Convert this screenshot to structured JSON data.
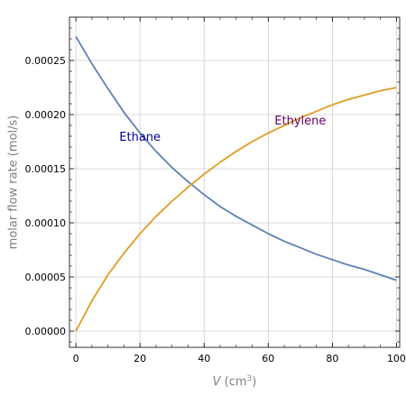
{
  "chart_data": {
    "type": "line",
    "xlabel_var": "V",
    "xlabel_unit_open": " (cm",
    "xlabel_unit_exp": "3",
    "xlabel_unit_close": ")",
    "ylabel": "molar flow rate (mol/s)",
    "xlim": [
      -2,
      101
    ],
    "ylim": [
      -1.5e-05,
      0.00029
    ],
    "x_ticks": [
      0,
      20,
      40,
      60,
      80,
      100
    ],
    "x_tick_labels": [
      "0",
      "20",
      "40",
      "60",
      "80",
      "100"
    ],
    "y_ticks": [
      0,
      5e-05,
      0.0001,
      0.00015,
      0.0002,
      0.00025
    ],
    "y_tick_labels": [
      "0.00000",
      "0.00005",
      "0.00010",
      "0.00015",
      "0.00020",
      "0.00025"
    ],
    "grid": true,
    "series": [
      {
        "name": "Ethane",
        "color": "#5e81b5",
        "label_color": "#000099",
        "x": [
          0,
          5,
          10,
          15,
          20,
          25,
          30,
          35,
          40,
          45,
          50,
          55,
          60,
          65,
          70,
          75,
          80,
          85,
          90,
          95,
          100
        ],
        "values": [
          0.000272,
          0.000247,
          0.000224,
          0.000202,
          0.000183,
          0.000166,
          0.000151,
          0.000138,
          0.000126,
          0.000115,
          0.000106,
          9.8e-05,
          9e-05,
          8.3e-05,
          7.7e-05,
          7.1e-05,
          6.6e-05,
          6.1e-05,
          5.7e-05,
          5.2e-05,
          4.7e-05
        ]
      },
      {
        "name": "Ethylene",
        "color": "#e19c24",
        "label_color": "#660066",
        "x": [
          0,
          5,
          10,
          15,
          20,
          25,
          30,
          35,
          40,
          45,
          50,
          55,
          60,
          65,
          70,
          75,
          80,
          85,
          90,
          95,
          100
        ],
        "values": [
          0.0,
          2.8e-05,
          5.2e-05,
          7.2e-05,
          9e-05,
          0.000106,
          0.00012,
          0.000133,
          0.000145,
          0.000156,
          0.000166,
          0.000175,
          0.000183,
          0.00019,
          0.000197,
          0.000203,
          0.000209,
          0.000214,
          0.000218,
          0.000222,
          0.000225
        ]
      }
    ],
    "annotations": [
      {
        "series": 0,
        "text": "Ethane",
        "x": 20,
        "y": 0.00018
      },
      {
        "series": 1,
        "text": "Ethylene",
        "x": 70,
        "y": 0.000195
      }
    ]
  }
}
